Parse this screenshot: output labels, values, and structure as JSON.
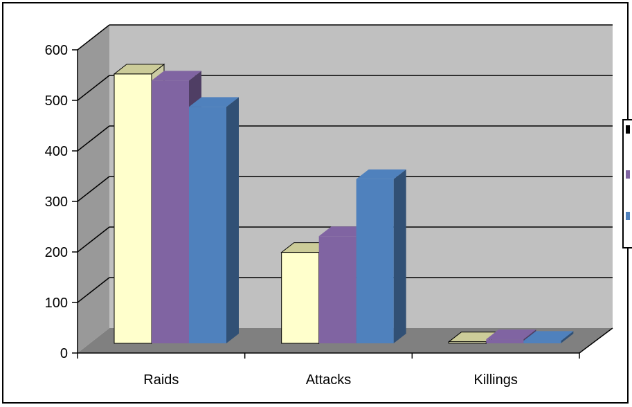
{
  "chart_data": {
    "type": "bar",
    "style": "3d-clustered-column",
    "categories": [
      "Raids",
      "Attacks",
      "Killings"
    ],
    "series": [
      {
        "values": [
          533,
          180,
          3
        ],
        "color": "#FFFFCC"
      },
      {
        "values": [
          520,
          212,
          8
        ],
        "color": "#8064A2"
      },
      {
        "values": [
          468,
          325,
          5
        ],
        "color": "#4F81BD"
      }
    ],
    "yticks": [
      0,
      100,
      200,
      300,
      400,
      500,
      600
    ],
    "ylim": [
      0,
      600
    ],
    "grid": true,
    "legend": "right",
    "colors": {
      "wall": "#C0C0C0",
      "side_wall": "#999999",
      "floor": "#808080"
    }
  }
}
